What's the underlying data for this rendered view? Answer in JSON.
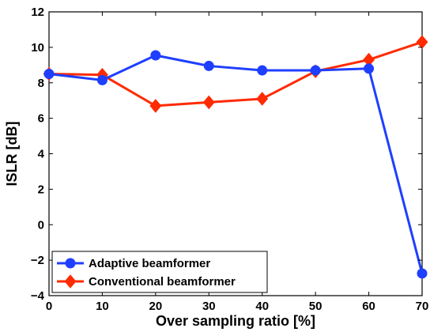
{
  "chart_data": {
    "type": "line",
    "xlabel": "Over sampling ratio [%]",
    "ylabel": "ISLR [dB]",
    "xlim": [
      0,
      70
    ],
    "ylim": [
      -4,
      12
    ],
    "xticks": [
      0,
      10,
      20,
      30,
      40,
      50,
      60,
      70
    ],
    "yticks": [
      -4,
      -2,
      0,
      2,
      4,
      6,
      8,
      10,
      12
    ],
    "grid": false,
    "legend_position": "bottom-left",
    "series": [
      {
        "name": "Adaptive beamformer",
        "color": "#1f3fff",
        "marker": "circle",
        "x": [
          0,
          10,
          20,
          30,
          40,
          50,
          60,
          70
        ],
        "y": [
          8.5,
          8.15,
          9.55,
          8.95,
          8.7,
          8.7,
          8.8,
          -2.75
        ]
      },
      {
        "name": "Conventional beamformer",
        "color": "#ff2a00",
        "marker": "diamond",
        "x": [
          0,
          10,
          20,
          30,
          40,
          50,
          60,
          70
        ],
        "y": [
          8.5,
          8.45,
          6.7,
          6.9,
          7.1,
          8.65,
          9.3,
          10.3
        ]
      }
    ]
  }
}
